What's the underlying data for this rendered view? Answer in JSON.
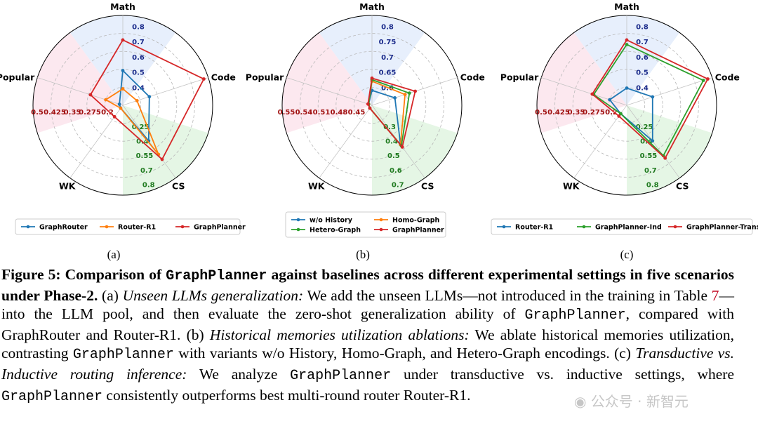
{
  "chart_data": [
    {
      "type": "radar",
      "panel_label": "(a)",
      "axes": [
        "Math",
        "Code",
        "CS",
        "WK",
        "Popular"
      ],
      "axis_ticks": {
        "Math": [
          "0.4",
          "0.5",
          "0.6",
          "0.7",
          "0.8"
        ],
        "Code": [],
        "CS": [
          "0.25",
          "0.4",
          "0.55",
          "0.7",
          "0.8"
        ],
        "WK": [],
        "Popular": [
          "0.5",
          "0.425",
          "0.35",
          "0.275",
          "0.2"
        ]
      },
      "series": [
        {
          "name": "GraphRouter",
          "color": "#1f77b4",
          "values": [
            0.51,
            0.465,
            0.57,
            0.3,
            0.215
          ]
        },
        {
          "name": "Router-R1",
          "color": "#ff7f0e",
          "values": [
            0.39,
            0.38,
            0.68,
            0.26,
            0.4
          ]
        },
        {
          "name": "GraphPlanner",
          "color": "#d62728",
          "values": [
            0.71,
            0.84,
            0.72,
            0.375,
            0.505
          ]
        }
      ]
    },
    {
      "type": "radar",
      "panel_label": "(b)",
      "axes": [
        "Math",
        "Code",
        "CS",
        "WK",
        "Popular"
      ],
      "axis_ticks": {
        "Math": [
          "0.6",
          "0.65",
          "0.7",
          "0.75",
          "0.8"
        ],
        "Code": [],
        "CS": [
          "0.3",
          "0.4",
          "0.5",
          "0.6",
          "0.7"
        ],
        "WK": [],
        "Popular": [
          "0.55",
          "0.54",
          "0.51",
          "0.48",
          "0.45"
        ]
      },
      "series": [
        {
          "name": "w/o History",
          "color": "#1f77b4",
          "values": [
            0.59,
            0.62,
            0.7,
            0.265,
            0.5
          ]
        },
        {
          "name": "Homo-Graph",
          "color": "#ff7f0e",
          "values": [
            0.62,
            0.655,
            0.7,
            0.275,
            0.525
          ]
        },
        {
          "name": "Hetero-Graph",
          "color": "#2ca02c",
          "values": [
            0.625,
            0.67,
            0.705,
            0.285,
            0.535
          ]
        },
        {
          "name": "GraphPlanner",
          "color": "#d62728",
          "values": [
            0.63,
            0.69,
            0.71,
            0.3,
            0.555
          ]
        }
      ]
    },
    {
      "type": "radar",
      "panel_label": "(c)",
      "axes": [
        "Math",
        "Code",
        "CS",
        "WK",
        "Popular"
      ],
      "axis_ticks": {
        "Math": [
          "0.4",
          "0.5",
          "0.6",
          "0.7",
          "0.8"
        ],
        "Code": [],
        "CS": [
          "0.25",
          "0.4",
          "0.55",
          "0.7",
          "0.8"
        ],
        "WK": [],
        "Popular": [
          "0.5",
          "0.425",
          "0.35",
          "0.275",
          "0.2"
        ]
      },
      "series": [
        {
          "name": "Router-R1",
          "color": "#1f77b4",
          "values": [
            0.395,
            0.46,
            0.57,
            0.35,
            0.4
          ]
        },
        {
          "name": "GraphPlanner-Ind",
          "color": "#2ca02c",
          "values": [
            0.68,
            0.81,
            0.69,
            0.35,
            0.51
          ]
        },
        {
          "name": "GraphPlanner-Trans",
          "color": "#d62728",
          "values": [
            0.71,
            0.84,
            0.71,
            0.37,
            0.52
          ]
        }
      ]
    }
  ],
  "caption": {
    "figure_label": "Figure 5:",
    "bold_1": "Comparison of",
    "bold_code": "GraphPlanner",
    "bold_2": "against baselines across different experimental settings in five scenarios under Phase-2.",
    "t_a": "(a)",
    "a_italic": "Unseen LLMs generalization:",
    "a_text_1": "We add the unseen LLMs—not introduced in the training in Table",
    "a_ref": "7",
    "a_text_2": "—into the LLM pool, and then evaluate the zero-shot generalization ability of",
    "a_code": "GraphPlanner",
    "a_text_3": ", compared with GraphRouter and Router-R1.",
    "t_b": "(b)",
    "b_italic": "Historical memories utilization ablations:",
    "b_text_1": "We ablate historical memories utilization, contrasting",
    "b_code": "GraphPlanner",
    "b_text_2": "with variants w/o History, Homo-Graph, and Hetero-Graph encodings.",
    "t_c": "(c)",
    "c_italic": "Transductive vs. Inductive routing inference:",
    "c_text_1": "We analyze",
    "c_code_1": "GraphPlanner",
    "c_text_2": "under transductive vs. inductive settings, where",
    "c_code_2": "GraphPlanner",
    "c_text_3": "consistently outperforms best multi-round router Router-R1."
  },
  "watermark": "公众号 · 新智元",
  "watermark_icon": "wechat-icon"
}
